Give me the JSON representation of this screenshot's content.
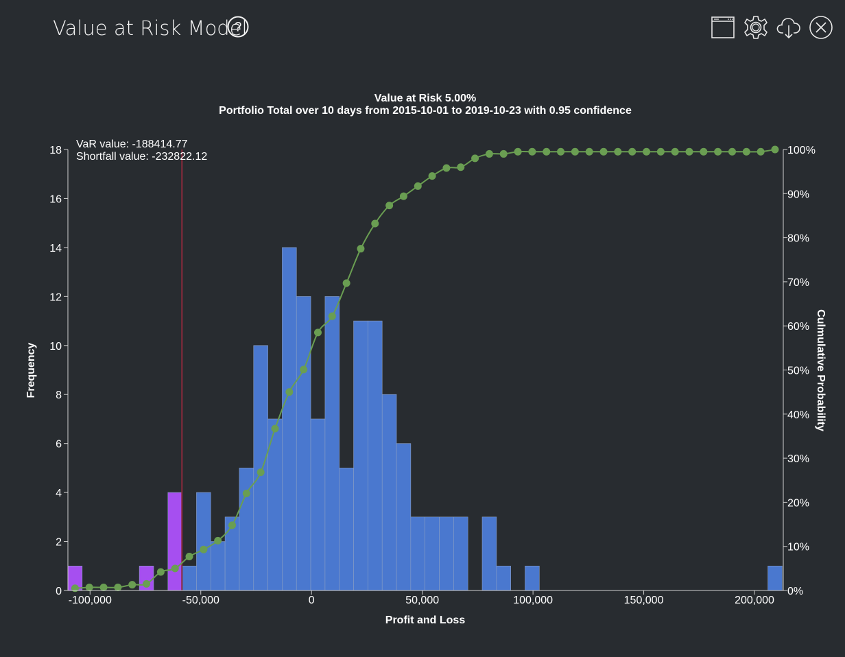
{
  "header": {
    "title": "Value at Risk Model",
    "icons": [
      "help-icon",
      "window-icon",
      "settings-icon",
      "cloud-download-icon",
      "close-icon"
    ]
  },
  "colors": {
    "background": "#282c30",
    "bar_normal": "#4a78cf",
    "bar_tail": "#a64ff0",
    "cumulative": "#6a9e52",
    "var_line": "#8b2a3c"
  },
  "chart_data": {
    "type": "bar",
    "title": "Value at Risk 5.00%",
    "subtitle": "Portfolio Total over 10 days from 2015-10-01 to 2019-10-23 with 0.95 confidence",
    "xlabel": "Profit and Loss",
    "ylabel": "Frequency",
    "y2label": "Culmulative Probability",
    "var_label": "VaR value: -188414.77",
    "shortfall_label": "Shortfall value: -232822.12",
    "var_line_x": -58500,
    "xlim": [
      -110000,
      213000
    ],
    "ylim": [
      0,
      18
    ],
    "y2lim": [
      0,
      1
    ],
    "bin_width": 6450,
    "x_ticks": [
      -100000,
      -50000,
      0,
      50000,
      100000,
      150000,
      200000
    ],
    "x_tick_labels": [
      "-100,000",
      "-50,000",
      "0",
      "50,000",
      "100,000",
      "150,000",
      "200,000"
    ],
    "y_ticks": [
      0,
      2,
      4,
      6,
      8,
      10,
      12,
      14,
      16,
      18
    ],
    "y_tick_labels": [
      "0",
      "2",
      "4",
      "6",
      "8",
      "10",
      "12",
      "14",
      "16",
      "18"
    ],
    "y2_ticks": [
      0,
      0.1,
      0.2,
      0.3,
      0.4,
      0.5,
      0.6,
      0.7,
      0.8,
      0.9,
      1
    ],
    "y2_tick_labels": [
      "0%",
      "10%",
      "20%",
      "30%",
      "40%",
      "50%",
      "60%",
      "70%",
      "80%",
      "90%",
      "100%"
    ],
    "bins_start": [
      -110000,
      -103550,
      -97100,
      -90650,
      -84200,
      -77750,
      -71300,
      -64850,
      -58400,
      -51950,
      -45500,
      -39050,
      -32600,
      -26150,
      -19700,
      -13250,
      -6800,
      -350,
      6100,
      12550,
      19000,
      25450,
      31900,
      38350,
      44800,
      51250,
      57700,
      64150,
      70600,
      77050,
      83500,
      89950,
      96400,
      102850,
      109300,
      115750,
      122200,
      128650,
      135100,
      141550,
      148000,
      154450,
      160900,
      167350,
      173800,
      180250,
      186700,
      193150,
      199600,
      206050
    ],
    "frequencies": [
      1,
      0,
      0,
      0,
      0,
      1,
      0,
      4,
      1,
      4,
      2,
      3,
      5,
      10,
      7,
      14,
      12,
      7,
      12,
      5,
      11,
      11,
      8,
      6,
      3,
      3,
      3,
      3,
      0,
      3,
      1,
      0,
      1,
      0,
      0,
      0,
      0,
      0,
      0,
      0,
      0,
      0,
      0,
      0,
      0,
      0,
      0,
      0,
      0,
      1
    ],
    "tail_bins": 8,
    "cumulative_x": [
      -106775,
      -100325,
      -93875,
      -87425,
      -80975,
      -74525,
      -68075,
      -61625,
      -55175,
      -48725,
      -42275,
      -35825,
      -29375,
      -22925,
      -16475,
      -10025,
      -3575,
      2875,
      9325,
      15775,
      22225,
      28675,
      35125,
      41575,
      48025,
      54475,
      60925,
      67375,
      73825,
      80275,
      86725,
      93175,
      99625,
      106075,
      112525,
      118975,
      125425,
      131875,
      138325,
      144775,
      151225,
      157675,
      164125,
      170575,
      177025,
      183475,
      189925,
      196375,
      202825,
      209275
    ],
    "cumulative": [
      0.005,
      0.007,
      0.007,
      0.007,
      0.013,
      0.015,
      0.042,
      0.05,
      0.077,
      0.093,
      0.113,
      0.148,
      0.22,
      0.268,
      0.367,
      0.45,
      0.501,
      0.585,
      0.622,
      0.697,
      0.775,
      0.832,
      0.873,
      0.894,
      0.917,
      0.94,
      0.958,
      0.96,
      0.98,
      0.99,
      0.99,
      0.995,
      0.995,
      0.995,
      0.995,
      0.995,
      0.995,
      0.995,
      0.995,
      0.995,
      0.995,
      0.995,
      0.995,
      0.995,
      0.995,
      0.995,
      0.995,
      0.995,
      0.995,
      1.0
    ]
  }
}
